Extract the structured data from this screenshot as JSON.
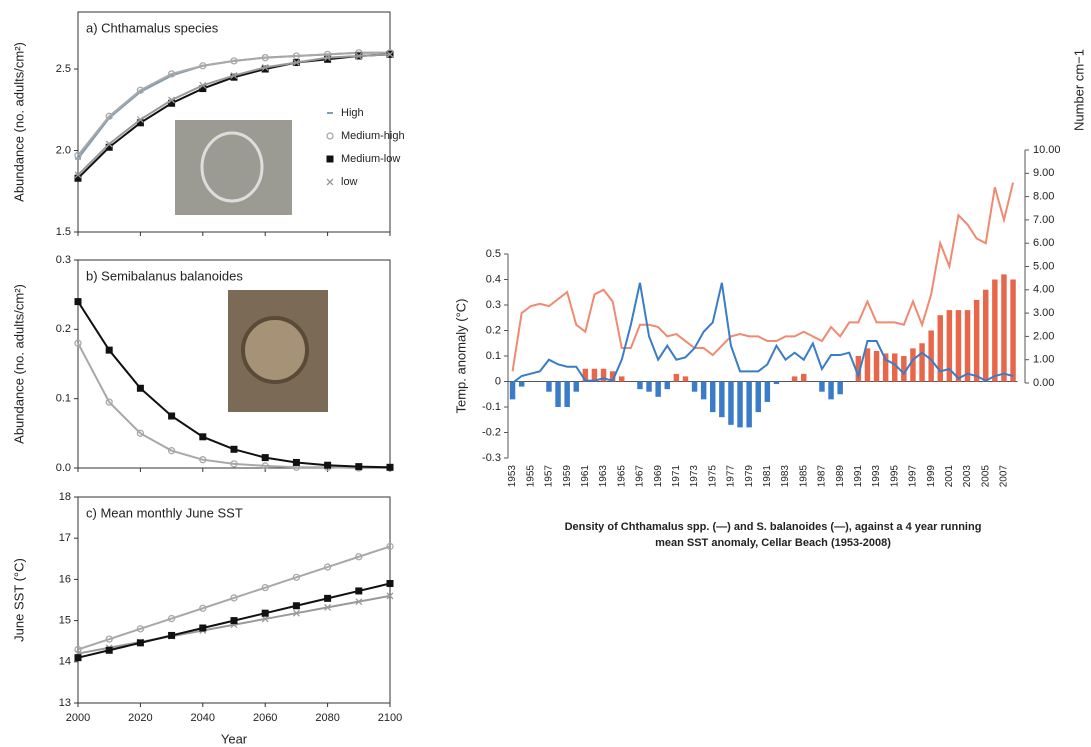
{
  "chart_data": [
    {
      "type": "line",
      "title": "a) Chthamalus species",
      "ylabel": "Abundance (no. adults/cm²)",
      "x": [
        2000,
        2010,
        2020,
        2030,
        2040,
        2050,
        2060,
        2070,
        2080,
        2090,
        2100
      ],
      "xlim": [
        2000,
        2100
      ],
      "xticks": [
        2000,
        2020,
        2040,
        2060,
        2080,
        2100
      ],
      "ylim": [
        1.5,
        2.85
      ],
      "yticks": [
        1.5,
        {
          "value": 2,
          "label": "2.0"
        },
        2.5
      ],
      "legend": "right",
      "series": [
        {
          "name": "High",
          "color": "#7f9fb5",
          "marker": "dash",
          "values": [
            1.95,
            2.2,
            2.36,
            2.46,
            2.52,
            2.55,
            2.57,
            2.58,
            2.59,
            2.6,
            2.6
          ]
        },
        {
          "name": "Medium-high",
          "color": "#a8a8a8",
          "marker": "circle",
          "values": [
            1.97,
            2.21,
            2.37,
            2.47,
            2.52,
            2.55,
            2.57,
            2.58,
            2.59,
            2.6,
            2.6
          ]
        },
        {
          "name": "Medium-low",
          "color": "#111111",
          "marker": "square",
          "values": [
            1.83,
            2.02,
            2.17,
            2.29,
            2.38,
            2.45,
            2.5,
            2.54,
            2.56,
            2.58,
            2.59
          ]
        },
        {
          "name": "low",
          "color": "#999999",
          "marker": "x",
          "values": [
            1.85,
            2.04,
            2.19,
            2.31,
            2.4,
            2.46,
            2.51,
            2.54,
            2.57,
            2.58,
            2.59
          ]
        }
      ]
    },
    {
      "type": "line",
      "title": "b) Semibalanus balanoides",
      "ylabel": "Abundance (no. adults/cm²)",
      "x": [
        2000,
        2010,
        2020,
        2030,
        2040,
        2050,
        2060,
        2070,
        2080,
        2090,
        2100
      ],
      "xlim": [
        2000,
        2100
      ],
      "xticks": [
        2000,
        2020,
        2040,
        2060,
        2080,
        2100
      ],
      "ylim": [
        0,
        0.3
      ],
      "yticks": [
        {
          "value": 0,
          "label": "0.0"
        },
        0.1,
        0.2,
        0.3
      ],
      "series": [
        {
          "color": "#a8a8a8",
          "marker": "circle",
          "values": [
            0.18,
            0.095,
            0.05,
            0.025,
            0.012,
            0.006,
            0.003,
            0.001,
            0.001,
            0,
            0
          ]
        },
        {
          "color": "#111111",
          "marker": "square",
          "values": [
            0.24,
            0.17,
            0.115,
            0.075,
            0.045,
            0.027,
            0.015,
            0.008,
            0.004,
            0.002,
            0.001
          ]
        }
      ]
    },
    {
      "type": "line",
      "title": "c) Mean monthly June SST",
      "ylabel": "June SST (°C)",
      "xlabel": "Year",
      "x": [
        2000,
        2010,
        2020,
        2030,
        2040,
        2050,
        2060,
        2070,
        2080,
        2090,
        2100
      ],
      "xlim": [
        2000,
        2100
      ],
      "xticks": [
        2000,
        2020,
        2040,
        2060,
        2080,
        2100
      ],
      "ylim": [
        13,
        18
      ],
      "yticks": [
        13,
        14,
        15,
        16,
        17,
        18
      ],
      "series": [
        {
          "color": "#a8a8a8",
          "marker": "circle",
          "values": [
            14.3,
            14.55,
            14.8,
            15.05,
            15.3,
            15.55,
            15.8,
            16.05,
            16.3,
            16.55,
            16.8
          ]
        },
        {
          "color": "#999999",
          "marker": "x",
          "values": [
            14.2,
            14.34,
            14.48,
            14.62,
            14.76,
            14.9,
            15.04,
            15.18,
            15.32,
            15.46,
            15.6
          ]
        },
        {
          "color": "#111111",
          "marker": "square",
          "values": [
            14.1,
            14.28,
            14.46,
            14.64,
            14.82,
            15.0,
            15.18,
            15.36,
            15.54,
            15.72,
            15.9
          ]
        }
      ]
    },
    {
      "type": "bar_line",
      "ylabel": "Temp. anomaly (°C)",
      "y2label": "Number cm−1",
      "caption": [
        "Density of Chthamalus spp. (—) and S. balanoides (—), against a 4 year running",
        "mean SST anomaly, Cellar Beach (1953-2008)"
      ],
      "categories": [
        "1953",
        null,
        "1955",
        null,
        "1957",
        null,
        "1959",
        null,
        "1961",
        null,
        "1963",
        null,
        "1965",
        null,
        "1967",
        null,
        "1969",
        null,
        "1971",
        null,
        "1973",
        null,
        "1975",
        null,
        "1977",
        null,
        "1979",
        null,
        "1981",
        null,
        "1983",
        null,
        "1985",
        null,
        "1987",
        null,
        "1989",
        null,
        "1991",
        null,
        "1993",
        null,
        "1995",
        null,
        "1997",
        null,
        "1999",
        null,
        "2001",
        null,
        "2003",
        null,
        "2005",
        null,
        "2007",
        null
      ],
      "ylim": [
        -0.3,
        0.5
      ],
      "yticks": [
        -0.3,
        -0.2,
        -0.1,
        0,
        0.1,
        0.2,
        0.3,
        0.4,
        0.5
      ],
      "y2lim": [
        0,
        10
      ],
      "y2ticks": [
        {
          "value": 0,
          "label": "0.00"
        },
        {
          "value": 1,
          "label": "1.00"
        },
        {
          "value": 2,
          "label": "2.00"
        },
        {
          "value": 3,
          "label": "3.00"
        },
        {
          "value": 4,
          "label": "4.00"
        },
        {
          "value": 5,
          "label": "5.00"
        },
        {
          "value": 6,
          "label": "6.00"
        },
        {
          "value": 7,
          "label": "7.00"
        },
        {
          "value": 8,
          "label": "8.00"
        },
        {
          "value": 9,
          "label": "9.00"
        },
        {
          "value": 10,
          "label": "10.00"
        }
      ],
      "bars": {
        "positive_color": "#e8674a",
        "negative_color": "#3a7cc8",
        "values": [
          -0.07,
          -0.02,
          0,
          0,
          -0.04,
          -0.1,
          -0.1,
          -0.04,
          0.05,
          0.05,
          0.05,
          0.04,
          0.02,
          0,
          -0.03,
          -0.04,
          -0.06,
          -0.03,
          0.03,
          0.02,
          -0.04,
          -0.07,
          -0.12,
          -0.14,
          -0.17,
          -0.18,
          -0.18,
          -0.12,
          -0.08,
          -0.01,
          0,
          0.02,
          0.03,
          0,
          -0.04,
          -0.07,
          -0.05,
          0,
          0.1,
          0.13,
          0.12,
          0.11,
          0.11,
          0.1,
          0.13,
          0.15,
          0.2,
          0.26,
          0.28,
          0.28,
          0.28,
          0.32,
          0.36,
          0.4,
          0.42,
          0.4
        ]
      },
      "series": [
        {
          "color": "#f08a70",
          "axis": "y2",
          "values": [
            0.5,
            3,
            3.3,
            3.4,
            3.3,
            3.6,
            3.9,
            2.5,
            2.2,
            3.8,
            4.0,
            3.5,
            1.5,
            1.5,
            2.5,
            2.5,
            2.4,
            2.0,
            2.1,
            1.8,
            1.5,
            1.5,
            1.2,
            1.6,
            2.0,
            2.1,
            2.0,
            2.0,
            1.8,
            1.8,
            2.0,
            2.0,
            2.2,
            2.0,
            1.8,
            2.4,
            2.0,
            2.6,
            2.6,
            3.5,
            2.6,
            2.6,
            2.6,
            2.5,
            3.5,
            2.5,
            3.8,
            6.0,
            5.0,
            7.2,
            6.8,
            6.2,
            6.0,
            8.4,
            7.0,
            8.6
          ]
        },
        {
          "color": "#3a7cc8",
          "axis": "y2",
          "values": [
            0,
            0.3,
            0.4,
            0.5,
            1.0,
            0.8,
            0.7,
            0.7,
            0.1,
            0.1,
            0.2,
            0.1,
            1.0,
            2.5,
            4.3,
            2.0,
            1.0,
            1.6,
            1.0,
            1.1,
            1.5,
            2.2,
            2.6,
            4.3,
            1.6,
            0.5,
            0.5,
            0.5,
            0.8,
            1.6,
            1.0,
            1.3,
            1.0,
            1.7,
            0.6,
            1.2,
            1.2,
            1.3,
            0.3,
            1.8,
            1.8,
            1.0,
            0.8,
            0.4,
            1.0,
            1.3,
            1.0,
            0.5,
            0.6,
            0.2,
            0.4,
            0.3,
            0.1,
            0.3,
            0.4,
            0.3
          ]
        }
      ]
    }
  ]
}
